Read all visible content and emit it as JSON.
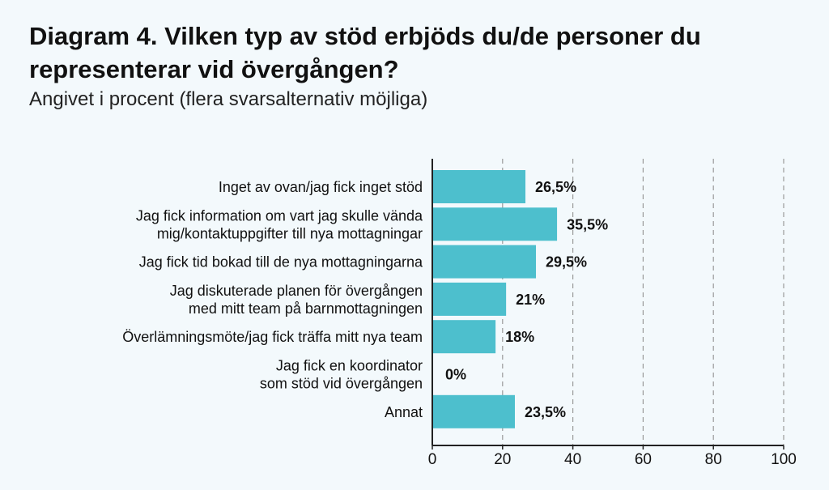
{
  "title": "Diagram 4. Vilken typ av stöd erbjöds du/de personer du representerar vid övergången?",
  "subtitle": "Angivet i procent (flera svarsalternativ möjliga)",
  "colors": {
    "bar": "#4dbfcd",
    "grid": "#9a9a9a",
    "axis": "#222222"
  },
  "chart_data": {
    "type": "bar",
    "orientation": "horizontal",
    "categories": [
      [
        "Inget av ovan/jag fick inget stöd"
      ],
      [
        "Jag fick information om vart jag skulle vända",
        "mig/kontaktuppgifter till nya mottagningar"
      ],
      [
        "Jag fick tid bokad till de nya mottagningarna"
      ],
      [
        "Jag diskuterade planen för övergången",
        "med mitt team på barnmottagningen"
      ],
      [
        "Överlämningsmöte/jag fick träffa mitt nya team"
      ],
      [
        "Jag fick en koordinator",
        "som stöd vid övergången"
      ],
      [
        "Annat"
      ]
    ],
    "values": [
      26.5,
      35.5,
      29.5,
      21,
      18,
      0,
      23.5
    ],
    "value_labels": [
      "26,5%",
      "35,5%",
      "29,5%",
      "21%",
      "18%",
      "0%",
      "23,5%"
    ],
    "xlim": [
      0,
      100
    ],
    "xticks": [
      "0",
      "20",
      "40",
      "60",
      "80",
      "100"
    ],
    "grid": "vertical-dashed",
    "xlabel": "",
    "ylabel": ""
  }
}
